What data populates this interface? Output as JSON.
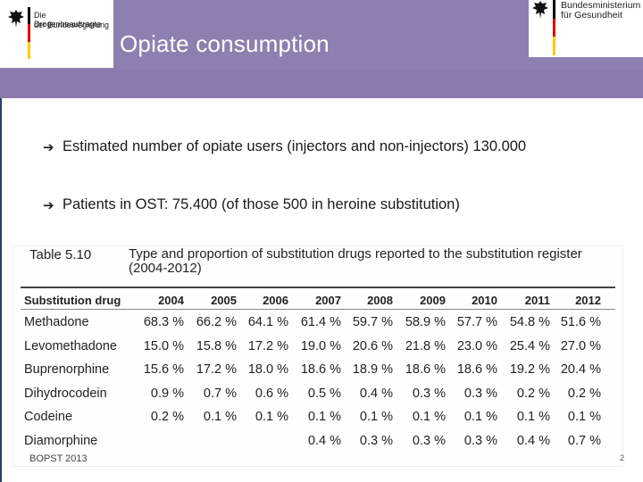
{
  "header": {
    "title": "Opiate consumption",
    "left_logo_text": [
      "Die Drogenbeauftragte",
      "der Bundesregierung"
    ],
    "right_logo_text": [
      "Bundesministerium",
      "für Gesundheit"
    ]
  },
  "bullets": [
    "Estimated number of opiate users (injectors and non-injectors) 130.000",
    "Patients in OST: 75.400 (of those 500 in heroine substitution)"
  ],
  "table": {
    "number": "Table 5.10",
    "caption": "Type and proportion of substitution drugs reported to the substitution register (2004-2012)",
    "columns": [
      "Substitution drug",
      "2004",
      "2005",
      "2006",
      "2007",
      "2008",
      "2009",
      "2010",
      "2011",
      "2012"
    ],
    "rows": [
      {
        "drug": "Methadone",
        "values": [
          "68.3 %",
          "66.2 %",
          "64.1 %",
          "61.4 %",
          "59.7 %",
          "58.9 %",
          "57.7 %",
          "54.8 %",
          "51.6 %"
        ]
      },
      {
        "drug": "Levomethadone",
        "values": [
          "15.0 %",
          "15.8 %",
          "17.2 %",
          "19.0 %",
          "20.6 %",
          "21.8 %",
          "23.0 %",
          "25.4 %",
          "27.0 %"
        ]
      },
      {
        "drug": "Buprenorphine",
        "values": [
          "15.6 %",
          "17.2 %",
          "18.0 %",
          "18.6 %",
          "18.9 %",
          "18.6 %",
          "18.6 %",
          "19.2 %",
          "20.4 %"
        ]
      },
      {
        "drug": "Dihydrocodein",
        "values": [
          "0.9 %",
          "0.7 %",
          "0.6 %",
          "0.5 %",
          "0.4 %",
          "0.3 %",
          "0.3 %",
          "0.2 %",
          "0.2 %"
        ]
      },
      {
        "drug": "Codeine",
        "values": [
          "0.2 %",
          "0.1 %",
          "0.1 %",
          "0.1 %",
          "0.1 %",
          "0.1 %",
          "0.1 %",
          "0.1 %",
          "0.1 %"
        ]
      },
      {
        "drug": "Diamorphine",
        "values": [
          "",
          "",
          "",
          "0.4 %",
          "0.3 %",
          "0.3 %",
          "0.3 %",
          "0.4 %",
          "0.7 %"
        ]
      }
    ],
    "source": "BOPST 2013"
  },
  "footer": {
    "slide_number": "2"
  },
  "colors": {
    "header": "#8f7fb0",
    "rule": "#2b3b66"
  }
}
